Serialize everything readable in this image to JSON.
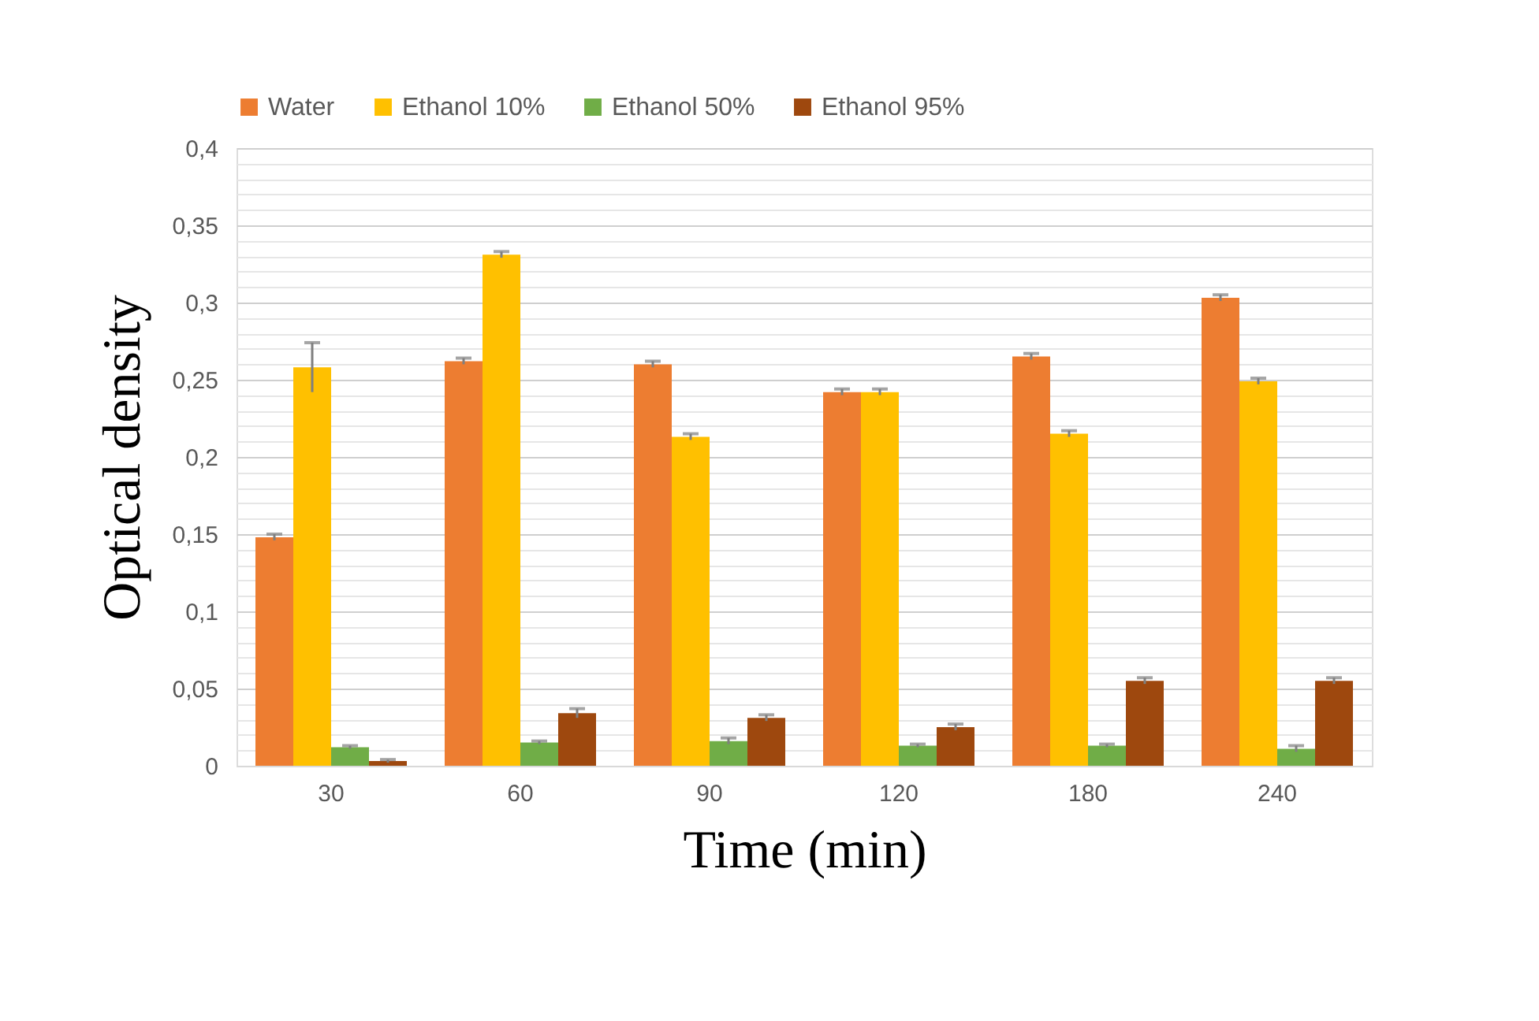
{
  "chart_data": {
    "type": "bar",
    "xlabel": "Time (min)",
    "ylabel": "Optical density",
    "categories": [
      "30",
      "60",
      "90",
      "120",
      "180",
      "240"
    ],
    "series": [
      {
        "name": "Water",
        "color": "#ed7d31",
        "values": [
          0.148,
          0.262,
          0.26,
          0.242,
          0.265,
          0.303
        ],
        "errors": [
          0.002,
          0.002,
          0.002,
          0.002,
          0.002,
          0.002
        ]
      },
      {
        "name": "Ethanol 10%",
        "color": "#ffc000",
        "values": [
          0.258,
          0.331,
          0.213,
          0.242,
          0.215,
          0.249
        ],
        "errors": [
          0.016,
          0.002,
          0.002,
          0.002,
          0.002,
          0.002
        ]
      },
      {
        "name": "Ethanol 50%",
        "color": "#70ad47",
        "values": [
          0.012,
          0.015,
          0.016,
          0.013,
          0.013,
          0.011
        ],
        "errors": [
          0.001,
          0.001,
          0.002,
          0.001,
          0.001,
          0.002
        ]
      },
      {
        "name": "Ethanol 95%",
        "color": "#9e480e",
        "values": [
          0.003,
          0.034,
          0.031,
          0.025,
          0.055,
          0.055
        ],
        "errors": [
          0.001,
          0.003,
          0.002,
          0.002,
          0.002,
          0.002
        ]
      }
    ],
    "ylim": [
      0,
      0.4
    ],
    "yticks": [
      {
        "value": 0,
        "label": "0"
      },
      {
        "value": 0.01,
        "label": null
      },
      {
        "value": 0.02,
        "label": null
      },
      {
        "value": 0.03,
        "label": null
      },
      {
        "value": 0.04,
        "label": null
      },
      {
        "value": 0.05,
        "label": "0,05"
      },
      {
        "value": 0.06,
        "label": null
      },
      {
        "value": 0.07,
        "label": null
      },
      {
        "value": 0.08,
        "label": null
      },
      {
        "value": 0.09,
        "label": null
      },
      {
        "value": 0.1,
        "label": "0,1"
      },
      {
        "value": 0.11,
        "label": null
      },
      {
        "value": 0.12,
        "label": null
      },
      {
        "value": 0.13,
        "label": null
      },
      {
        "value": 0.14,
        "label": null
      },
      {
        "value": 0.15,
        "label": "0,15"
      },
      {
        "value": 0.16,
        "label": null
      },
      {
        "value": 0.17,
        "label": null
      },
      {
        "value": 0.18,
        "label": null
      },
      {
        "value": 0.19,
        "label": null
      },
      {
        "value": 0.2,
        "label": "0,2"
      },
      {
        "value": 0.21,
        "label": null
      },
      {
        "value": 0.22,
        "label": null
      },
      {
        "value": 0.23,
        "label": null
      },
      {
        "value": 0.24,
        "label": null
      },
      {
        "value": 0.25,
        "label": "0,25"
      },
      {
        "value": 0.26,
        "label": null
      },
      {
        "value": 0.27,
        "label": null
      },
      {
        "value": 0.28,
        "label": null
      },
      {
        "value": 0.29,
        "label": null
      },
      {
        "value": 0.3,
        "label": "0,3"
      },
      {
        "value": 0.31,
        "label": null
      },
      {
        "value": 0.32,
        "label": null
      },
      {
        "value": 0.33,
        "label": null
      },
      {
        "value": 0.34,
        "label": null
      },
      {
        "value": 0.35,
        "label": "0,35"
      },
      {
        "value": 0.36,
        "label": null
      },
      {
        "value": 0.37,
        "label": null
      },
      {
        "value": 0.38,
        "label": null
      },
      {
        "value": 0.39,
        "label": null
      },
      {
        "value": 0.4,
        "label": "0,4"
      }
    ],
    "grid": "y",
    "legend": "top"
  }
}
